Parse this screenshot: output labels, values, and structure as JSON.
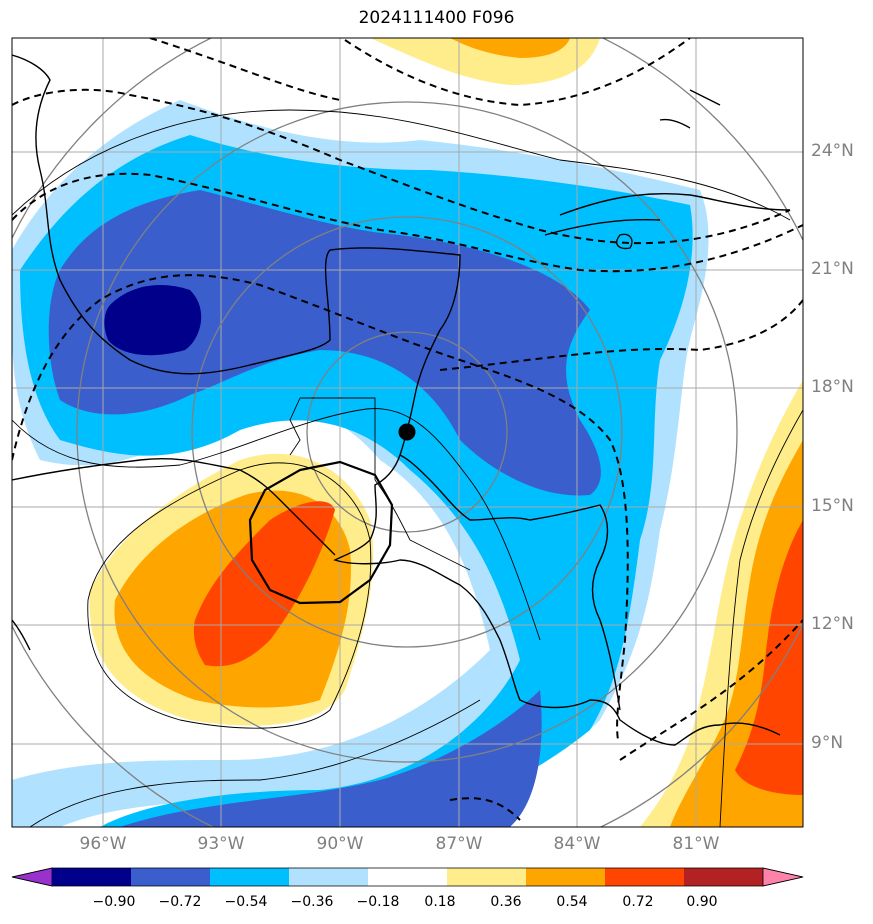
{
  "title": "2024111400 F096",
  "lat_labels": [
    "24°N",
    "21°N",
    "18°N",
    "15°N",
    "12°N",
    "9°N"
  ],
  "lon_labels": [
    "96°W",
    "93°W",
    "90°W",
    "87°W",
    "84°W",
    "81°W"
  ],
  "colorbar": {
    "ticks": [
      "−0.90",
      "−0.72",
      "−0.54",
      "−0.36",
      "−0.18",
      "0.18",
      "0.36",
      "0.54",
      "0.72",
      "0.90"
    ],
    "colors": [
      "#9932cc",
      "#00008b",
      "#3a5fcd",
      "#00bfff",
      "#b0e2ff",
      "#ffffff",
      "#ffec8b",
      "#ffa500",
      "#ff4500",
      "#b22222",
      "#ff82ab"
    ]
  },
  "marker": "storm-center-dot"
}
